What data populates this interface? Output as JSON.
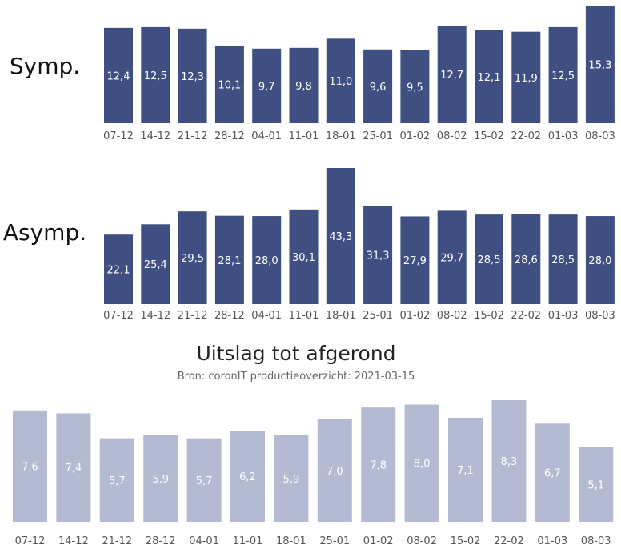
{
  "chart_data": [
    {
      "type": "bar",
      "label": "Symp.",
      "color": "#3f4f82",
      "value_color": "#ffffff",
      "categories": [
        "07-12",
        "14-12",
        "21-12",
        "28-12",
        "04-01",
        "11-01",
        "18-01",
        "25-01",
        "01-02",
        "08-02",
        "15-02",
        "22-02",
        "01-03",
        "08-03"
      ],
      "values": [
        12.4,
        12.5,
        12.3,
        10.1,
        9.7,
        9.8,
        11.0,
        9.6,
        9.5,
        12.7,
        12.1,
        11.9,
        12.5,
        15.3
      ],
      "value_labels": [
        "12,4",
        "12,5",
        "12,3",
        "10,1",
        "9,7",
        "9,8",
        "11,0",
        "9,6",
        "9,5",
        "12,7",
        "12,1",
        "11,9",
        "12,5",
        "15,3"
      ],
      "ylim": [
        0,
        15.3
      ]
    },
    {
      "type": "bar",
      "label": "Asymp.",
      "color": "#3f4f82",
      "value_color": "#ffffff",
      "categories": [
        "07-12",
        "14-12",
        "21-12",
        "28-12",
        "04-01",
        "11-01",
        "18-01",
        "25-01",
        "01-02",
        "08-02",
        "15-02",
        "22-02",
        "01-03",
        "08-03"
      ],
      "values": [
        22.1,
        25.4,
        29.5,
        28.1,
        28.0,
        30.1,
        43.3,
        31.3,
        27.9,
        29.7,
        28.5,
        28.6,
        28.5,
        28.0
      ],
      "value_labels": [
        "22,1",
        "25,4",
        "29,5",
        "28,1",
        "28,0",
        "30,1",
        "43,3",
        "31,3",
        "27,9",
        "29,7",
        "28,5",
        "28,6",
        "28,5",
        "28,0"
      ],
      "ylim": [
        0,
        43.3
      ]
    },
    {
      "type": "bar",
      "title": "Uitslag tot afgerond",
      "subtitle": "Bron: coronIT productieoverzicht: 2021-03-15",
      "color": "#b4bad2",
      "value_color": "#ffffff",
      "categories": [
        "07-12",
        "14-12",
        "21-12",
        "28-12",
        "04-01",
        "11-01",
        "18-01",
        "25-01",
        "01-02",
        "08-02",
        "15-02",
        "22-02",
        "01-03",
        "08-03"
      ],
      "values": [
        7.6,
        7.4,
        5.7,
        5.9,
        5.7,
        6.2,
        5.9,
        7.0,
        7.8,
        8.0,
        7.1,
        8.3,
        6.7,
        5.1
      ],
      "value_labels": [
        "7,6",
        "7,4",
        "5,7",
        "5,9",
        "5,7",
        "6,2",
        "5,9",
        "7,0",
        "7,8",
        "8,0",
        "7,1",
        "8,3",
        "6,7",
        "5,1"
      ],
      "ylim": [
        0,
        8.3
      ]
    }
  ]
}
